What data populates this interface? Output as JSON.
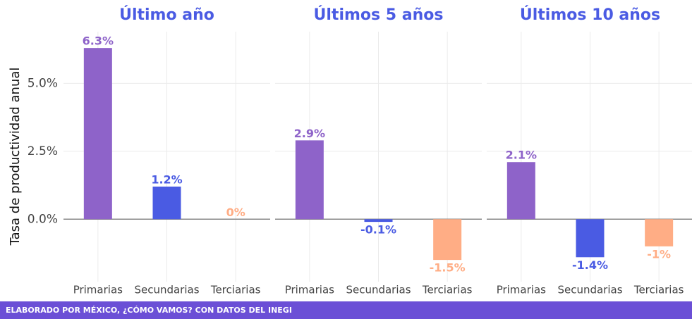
{
  "chart_data": [
    {
      "type": "bar",
      "title": "Último año",
      "y_label": "Tasa de productividad anual",
      "categories": [
        "Primarias",
        "Secundarias",
        "Terciarias"
      ],
      "values": [
        6.3,
        1.2,
        0.0
      ],
      "value_labels": [
        "6.3%",
        "1.2%",
        "0%"
      ],
      "colors": [
        "#8e63c9",
        "#4a5be3",
        "#ffad85"
      ],
      "ylim": [
        -2.3,
        6.9
      ],
      "yticks": [
        {
          "value": 0,
          "label": "0.0%"
        },
        {
          "value": 2.5,
          "label": "2.5%"
        },
        {
          "value": 5,
          "label": "5.0%"
        }
      ],
      "grid": true
    },
    {
      "type": "bar",
      "title": "Últimos 5 años",
      "categories": [
        "Primarias",
        "Secundarias",
        "Terciarias"
      ],
      "values": [
        2.9,
        -0.1,
        -1.5
      ],
      "value_labels": [
        "2.9%",
        "-0.1%",
        "-1.5%"
      ],
      "colors": [
        "#8e63c9",
        "#4a5be3",
        "#ffad85"
      ],
      "ylim": [
        -2.3,
        6.9
      ],
      "yticks": [
        0,
        2.5,
        5
      ],
      "grid": true
    },
    {
      "type": "bar",
      "title": "Últimos 10 años",
      "categories": [
        "Primarias",
        "Secundarias",
        "Terciarias"
      ],
      "values": [
        2.1,
        -1.4,
        -1.0
      ],
      "value_labels": [
        "2.1%",
        "-1.4%",
        "-1%"
      ],
      "colors": [
        "#8e63c9",
        "#4a5be3",
        "#ffad85"
      ],
      "ylim": [
        -2.3,
        6.9
      ],
      "yticks": [
        0,
        2.5,
        5
      ],
      "grid": true
    }
  ],
  "footer": "ELABORADO POR MÉXICO, ¿CÓMO VAMOS? CON DATOS DEL INEGI"
}
